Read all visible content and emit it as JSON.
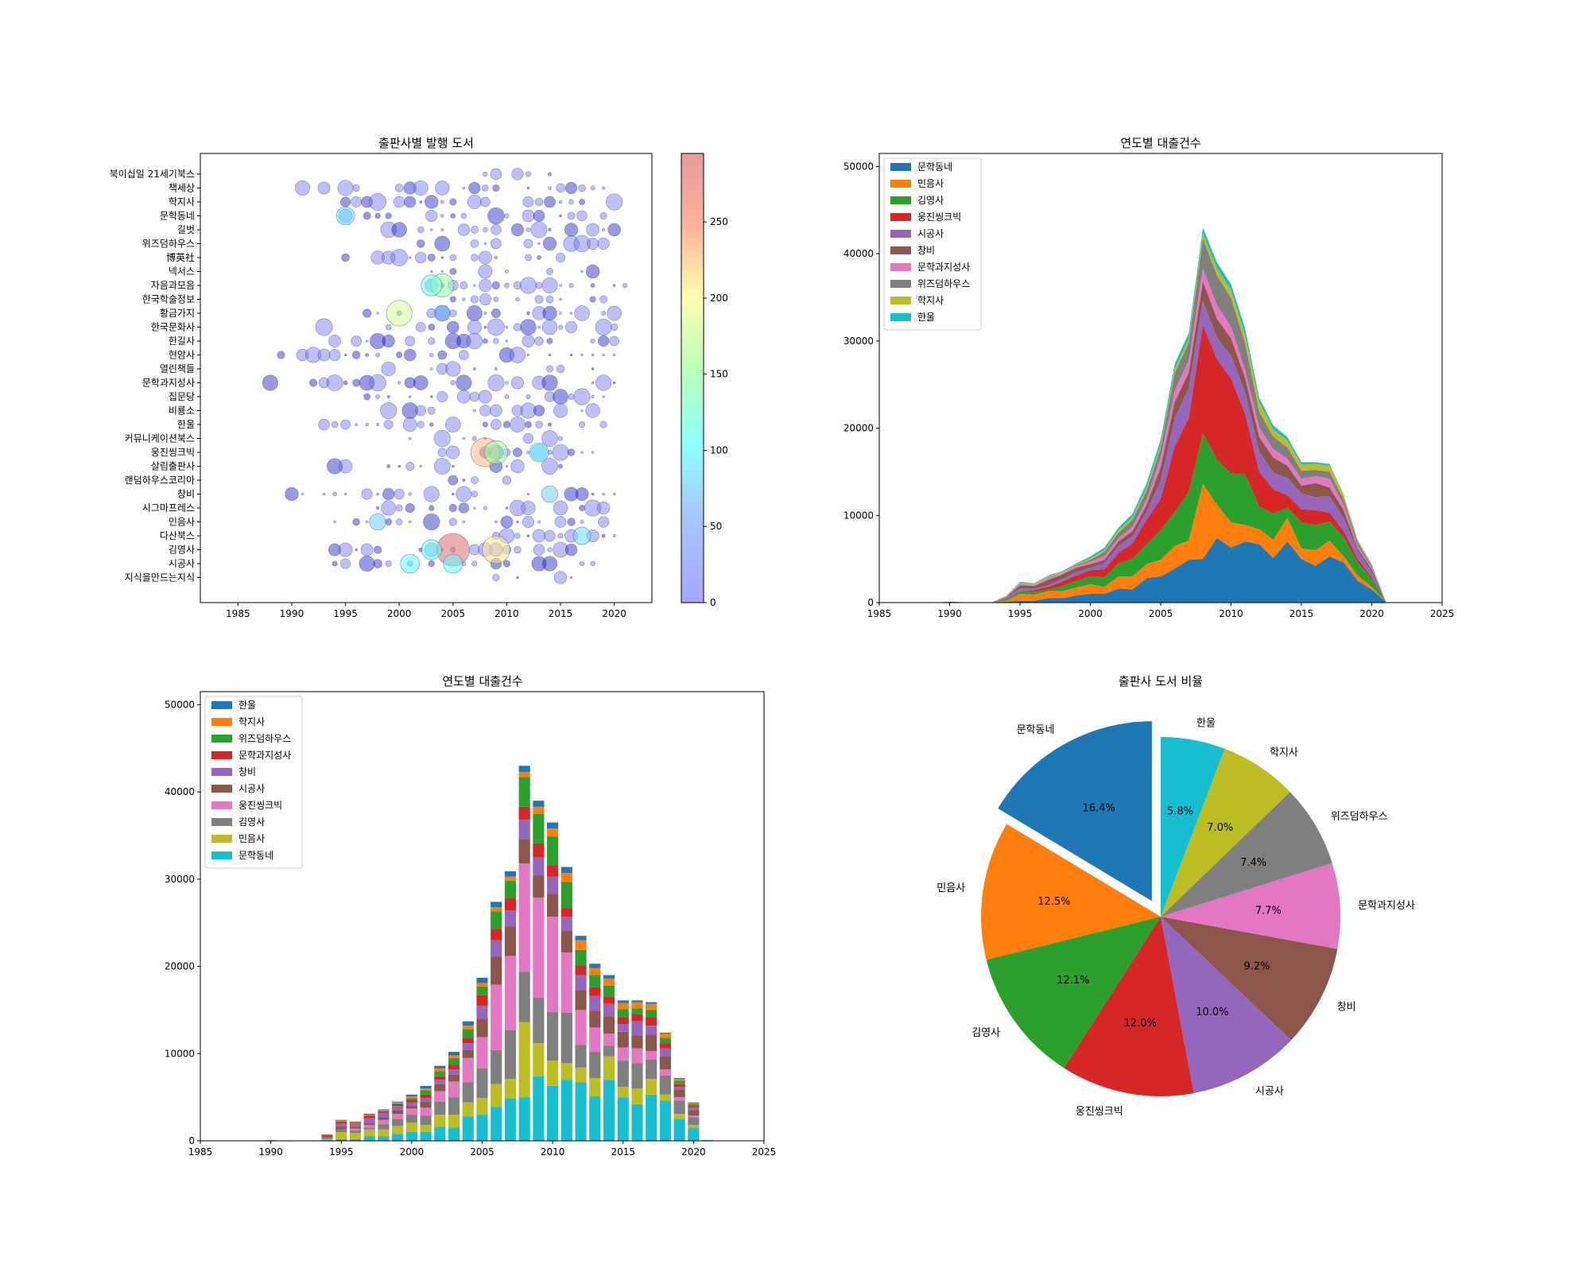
{
  "chart_data": [
    {
      "type": "scatter",
      "title": "출판사별 발행 도서",
      "xlim": [
        1981.5,
        2023.5
      ],
      "xticks": [
        1985,
        1990,
        1995,
        2000,
        2005,
        2010,
        2015,
        2020
      ],
      "categories_top_to_bottom": [
        "북이십일 21세기북스",
        "책세상",
        "학지사",
        "문학동네",
        "길벗",
        "위즈덤하우스",
        "博英社",
        "넥서스",
        "자음과모음",
        "한국학술정보",
        "황금가지",
        "한국문화사",
        "한길사",
        "현암사",
        "열린책들",
        "문학과지성사",
        "집문당",
        "비룡소",
        "한울",
        "커뮤니케이션북스",
        "웅진씽크빅",
        "살림출판사",
        "랜덤하우스코리아",
        "창비",
        "시그마프레스",
        "민음사",
        "다산북스",
        "김영사",
        "시공사",
        "지식을만드는지식"
      ],
      "colorbar": {
        "min": 0,
        "max": 295,
        "ticks": [
          0,
          50,
          100,
          150,
          200,
          250
        ]
      },
      "highlights": [
        {
          "publisher": "김영사",
          "year": 2005,
          "value": 295
        },
        {
          "publisher": "자음과모음",
          "year": 2004,
          "value": 150
        },
        {
          "publisher": "자음과모음",
          "year": 2003,
          "value": 120
        },
        {
          "publisher": "황금가지",
          "year": 2000,
          "value": 180
        },
        {
          "publisher": "황금가지",
          "year": 2004,
          "value": 70
        },
        {
          "publisher": "문학동네",
          "year": 1995,
          "value": 90
        },
        {
          "publisher": "민음사",
          "year": 1998,
          "value": 75
        },
        {
          "publisher": "창비",
          "year": 2014,
          "value": 75
        },
        {
          "publisher": "다산북스",
          "year": 2017,
          "value": 85
        },
        {
          "publisher": "웅진씽크빅",
          "year": 2008,
          "value": 230
        },
        {
          "publisher": "웅진씽크빅",
          "year": 2009,
          "value": 150
        },
        {
          "publisher": "웅진씽크빅",
          "year": 2013,
          "value": 100
        },
        {
          "publisher": "김영사",
          "year": 2009,
          "value": 210
        },
        {
          "publisher": "김영사",
          "year": 2003,
          "value": 110
        },
        {
          "publisher": "시공사",
          "year": 2001,
          "value": 100
        },
        {
          "publisher": "시공사",
          "year": 2005,
          "value": 100
        }
      ]
    },
    {
      "type": "area",
      "title": "연도별 대출건수",
      "years": [
        1988,
        1989,
        1990,
        1991,
        1992,
        1993,
        1994,
        1995,
        1996,
        1997,
        1998,
        1999,
        2000,
        2001,
        2002,
        2003,
        2004,
        2005,
        2006,
        2007,
        2008,
        2009,
        2010,
        2011,
        2012,
        2013,
        2014,
        2015,
        2016,
        2017,
        2018,
        2019,
        2020,
        2021
      ],
      "xlim": [
        1985,
        2025
      ],
      "xticks": [
        1985,
        1990,
        1995,
        2000,
        2005,
        2010,
        2015,
        2020,
        2025
      ],
      "ylim": [
        0,
        51500
      ],
      "yticks": [
        0,
        10000,
        20000,
        30000,
        40000,
        50000
      ],
      "series": [
        {
          "name": "문학동네",
          "color": "#1f77b4",
          "values": [
            0,
            0,
            0,
            0,
            0,
            0,
            100,
            200,
            200,
            500,
            500,
            800,
            1000,
            1000,
            1600,
            1500,
            2800,
            3000,
            3900,
            4900,
            5000,
            7400,
            6300,
            7000,
            6700,
            5100,
            7000,
            5000,
            4200,
            5300,
            4600,
            2500,
            1500,
            100
          ]
        },
        {
          "name": "민음사",
          "color": "#ff7f0e",
          "values": [
            0,
            0,
            50,
            50,
            0,
            50,
            100,
            800,
            700,
            800,
            800,
            900,
            1100,
            800,
            1400,
            1500,
            1600,
            1900,
            2600,
            2200,
            8600,
            3800,
            2900,
            1900,
            1700,
            2100,
            2700,
            1200,
            1800,
            1800,
            700,
            600,
            300,
            0
          ]
        },
        {
          "name": "김영사",
          "color": "#2ca02c",
          "values": [
            0,
            0,
            0,
            0,
            0,
            0,
            200,
            300,
            300,
            200,
            600,
            800,
            900,
            1100,
            1500,
            2000,
            2300,
            3400,
            3900,
            5600,
            5800,
            5200,
            5600,
            5800,
            2600,
            3000,
            1200,
            3000,
            2900,
            2200,
            2200,
            1500,
            900,
            0
          ]
        },
        {
          "name": "웅진씽크빅",
          "color": "#d62728",
          "values": [
            0,
            0,
            50,
            0,
            0,
            0,
            0,
            0,
            200,
            300,
            500,
            600,
            700,
            900,
            1200,
            1800,
            2800,
            3600,
            7500,
            8500,
            12400,
            11500,
            10900,
            6900,
            4000,
            2800,
            1400,
            1500,
            1700,
            1000,
            700,
            400,
            200,
            0
          ]
        },
        {
          "name": "시공사",
          "color": "#9467bd",
          "values": [
            0,
            0,
            0,
            0,
            0,
            0,
            200,
            300,
            200,
            200,
            300,
            400,
            300,
            700,
            800,
            800,
            900,
            2100,
            3200,
            3400,
            2800,
            2500,
            2600,
            2500,
            2300,
            1900,
            2000,
            1800,
            1500,
            1900,
            1500,
            900,
            600,
            0
          ]
        },
        {
          "name": "창비",
          "color": "#8c564b",
          "values": [
            0,
            0,
            0,
            0,
            0,
            0,
            0,
            400,
            300,
            600,
            500,
            500,
            400,
            400,
            500,
            600,
            800,
            1500,
            1900,
            1800,
            2200,
            2100,
            2000,
            1600,
            1700,
            1700,
            1400,
            900,
            1600,
            1000,
            900,
            300,
            300,
            0
          ]
        },
        {
          "name": "문학과지성사",
          "color": "#e377c2",
          "values": [
            0,
            0,
            0,
            0,
            0,
            0,
            100,
            200,
            100,
            300,
            200,
            200,
            300,
            400,
            400,
            500,
            600,
            1200,
            1300,
            1400,
            1500,
            1600,
            1300,
            1000,
            1100,
            1000,
            800,
            800,
            800,
            1000,
            600,
            300,
            200,
            0
          ]
        },
        {
          "name": "위즈덤하우스",
          "color": "#7f7f7f",
          "values": [
            0,
            0,
            0,
            0,
            0,
            0,
            0,
            0,
            0,
            0,
            0,
            100,
            200,
            500,
            600,
            800,
            1000,
            1000,
            2000,
            2000,
            3400,
            3400,
            3300,
            3000,
            1800,
            1400,
            1300,
            900,
            700,
            800,
            600,
            400,
            200,
            0
          ]
        },
        {
          "name": "학지사",
          "color": "#bcbd22",
          "values": [
            0,
            0,
            0,
            0,
            0,
            0,
            50,
            100,
            100,
            100,
            100,
            100,
            200,
            200,
            300,
            300,
            400,
            400,
            500,
            500,
            600,
            800,
            900,
            1000,
            1100,
            800,
            800,
            700,
            700,
            700,
            500,
            200,
            100,
            0
          ]
        },
        {
          "name": "한울",
          "color": "#17becf",
          "values": [
            0,
            0,
            0,
            0,
            0,
            0,
            0,
            100,
            100,
            100,
            100,
            100,
            200,
            300,
            300,
            400,
            500,
            600,
            600,
            600,
            700,
            700,
            700,
            700,
            500,
            500,
            400,
            300,
            200,
            200,
            100,
            100,
            100,
            0
          ]
        }
      ]
    },
    {
      "type": "bar",
      "title": "연도별 대출건수",
      "xlim": [
        1985,
        2025
      ],
      "xticks": [
        1985,
        1990,
        1995,
        2000,
        2005,
        2010,
        2015,
        2020,
        2025
      ],
      "ylim": [
        0,
        51500
      ],
      "yticks": [
        0,
        10000,
        20000,
        30000,
        40000,
        50000
      ],
      "stack_order_bottom_to_top": [
        "문학동네",
        "민음사",
        "김영사",
        "웅진씽크빅",
        "시공사",
        "창비",
        "문학과지성사",
        "위즈덤하우스",
        "학지사",
        "한울"
      ],
      "legend_order": [
        "한울",
        "학지사",
        "위즈덤하우스",
        "문학과지성사",
        "창비",
        "시공사",
        "웅진씽크빅",
        "김영사",
        "민음사",
        "문학동네"
      ],
      "legend_colors": [
        "#1f77b4",
        "#ff7f0e",
        "#2ca02c",
        "#d62728",
        "#9467bd",
        "#8c564b",
        "#e377c2",
        "#7f7f7f",
        "#bcbd22",
        "#17becf"
      ],
      "note": "same data as area chart"
    },
    {
      "type": "pie",
      "title": "출판사 도서 비율",
      "slices": [
        {
          "label": "문학동네",
          "value": 16.4,
          "pct": "16.4%",
          "color": "#1f77b4",
          "explode": true
        },
        {
          "label": "민음사",
          "value": 12.5,
          "pct": "12.5%",
          "color": "#ff7f0e"
        },
        {
          "label": "김영사",
          "value": 12.1,
          "pct": "12.1%",
          "color": "#2ca02c"
        },
        {
          "label": "웅진씽크빅",
          "value": 12.0,
          "pct": "12.0%",
          "color": "#d62728"
        },
        {
          "label": "시공사",
          "value": 10.0,
          "pct": "10.0%",
          "color": "#9467bd"
        },
        {
          "label": "창비",
          "value": 9.2,
          "pct": "9.2%",
          "color": "#8c564b"
        },
        {
          "label": "문학과지성사",
          "value": 7.7,
          "pct": "7.7%",
          "color": "#e377c2"
        },
        {
          "label": "위즈덤하우스",
          "value": 7.4,
          "pct": "7.4%",
          "color": "#7f7f7f"
        },
        {
          "label": "학지사",
          "value": 7.0,
          "pct": "7.0%",
          "color": "#bcbd22"
        },
        {
          "label": "한울",
          "value": 5.8,
          "pct": "5.8%",
          "color": "#17becf"
        }
      ]
    }
  ]
}
